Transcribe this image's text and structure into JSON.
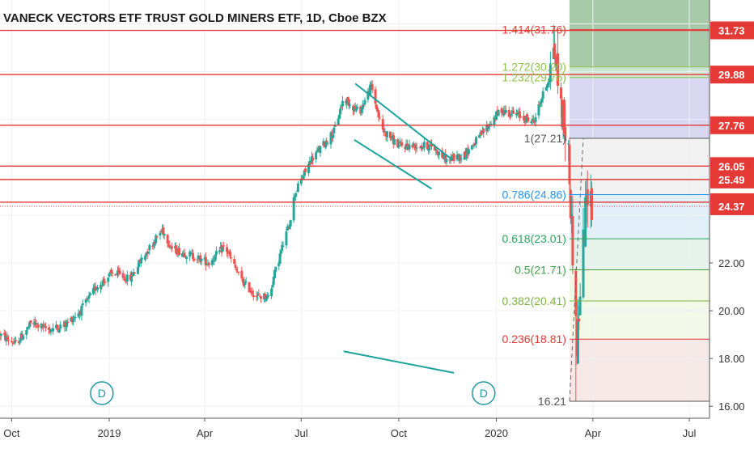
{
  "chart_data": {
    "type": "candlestick",
    "title": "VANECK VECTORS ETF TRUST GOLD MINERS ETF, 1D, Cboe BZX",
    "ylim": [
      15.5,
      33.0
    ],
    "yticks": [
      16,
      18,
      20,
      22,
      24,
      26,
      28,
      30,
      32
    ],
    "ytick_labels": [
      "16.00",
      "18.00",
      "20.00",
      "22.00",
      "",
      "",
      "",
      "",
      ""
    ],
    "xlim": [
      "2018-09-20",
      "2020-07-20"
    ],
    "xticks": [
      {
        "date": "2018-10-01",
        "label": "Oct"
      },
      {
        "date": "2019-01-01",
        "label": "2019"
      },
      {
        "date": "2019-04-01",
        "label": "Apr"
      },
      {
        "date": "2019-07-01",
        "label": "Jul"
      },
      {
        "date": "2019-10-01",
        "label": "Oct"
      },
      {
        "date": "2020-01-01",
        "label": "2020"
      },
      {
        "date": "2020-04-01",
        "label": "Apr"
      },
      {
        "date": "2020-07-01",
        "label": "Jul"
      }
    ],
    "horizontal_levels": [
      {
        "price": 31.73,
        "label": "31.73"
      },
      {
        "price": 29.88,
        "label": "29.88"
      },
      {
        "price": 27.76,
        "label": "27.76"
      },
      {
        "price": 26.05,
        "label": "26.05"
      },
      {
        "price": 25.49,
        "label": "25.49"
      },
      {
        "price": 24.54,
        "label": "24.54"
      }
    ],
    "last_price": {
      "price": 24.37,
      "label": "24.37"
    },
    "fib_levels": [
      {
        "label": "1.414(31.76)",
        "value": 31.76,
        "color": "#e53935"
      },
      {
        "label": "1.272(30.20)",
        "value": 30.2,
        "color": "#8bc34a"
      },
      {
        "label": "1.232(29.76)",
        "value": 29.76,
        "color": "#8bc34a"
      },
      {
        "label": "1(27.21)",
        "value": 27.21,
        "color": "#555555"
      },
      {
        "label": "0.786(24.86)",
        "value": 24.86,
        "color": "#2196f3"
      },
      {
        "label": "0.618(23.01)",
        "value": 23.01,
        "color": "#26a65b"
      },
      {
        "label": "0.5(21.71)",
        "value": 21.71,
        "color": "#43a047"
      },
      {
        "label": "0.382(20.41)",
        "value": 20.41,
        "color": "#7cb342"
      },
      {
        "label": "0.236(18.81)",
        "value": 18.81,
        "color": "#e53935"
      },
      {
        "label": "16.21",
        "value": 16.21,
        "color": "#555555"
      }
    ],
    "fib_zone_colors": [
      "#5e9e62",
      "#b6b6e6",
      "#e6e6e6",
      "#c8e3f2",
      "#cfead9",
      "#e3f2cf",
      "#f1d6d6"
    ],
    "trendlines": [
      {
        "from": [
          "2019-08-21",
          29.5
        ],
        "to": [
          "2019-11-21",
          26.3
        ]
      },
      {
        "from": [
          "2019-08-20",
          27.15
        ],
        "to": [
          "2019-11-01",
          25.1
        ]
      },
      {
        "from": [
          "2019-08-10",
          18.3
        ],
        "to": [
          "2019-11-22",
          17.4
        ]
      }
    ],
    "fib_anchor_line": {
      "from": [
        "2020-03-10",
        16.21
      ],
      "to": [
        "2020-03-23",
        27.21
      ]
    },
    "dividend_markers": [
      {
        "date": "2018-12-25",
        "label": "D"
      },
      {
        "date": "2019-12-20",
        "label": "D"
      }
    ],
    "colors": {
      "up": "#26a69a",
      "down": "#ef5350",
      "level": "#e53935"
    },
    "anchors": [
      [
        "2018-09-20",
        19.0
      ],
      [
        "2018-10-05",
        18.6
      ],
      [
        "2018-10-20",
        19.5
      ],
      [
        "2018-11-05",
        19.2
      ],
      [
        "2018-11-20",
        19.4
      ],
      [
        "2018-12-05",
        20.0
      ],
      [
        "2018-12-20",
        21.0
      ],
      [
        "2019-01-05",
        21.6
      ],
      [
        "2019-01-20",
        21.3
      ],
      [
        "2019-02-01",
        22.2
      ],
      [
        "2019-02-20",
        23.4
      ],
      [
        "2019-03-01",
        22.6
      ],
      [
        "2019-03-20",
        22.3
      ],
      [
        "2019-04-05",
        22.0
      ],
      [
        "2019-04-20",
        22.7
      ],
      [
        "2019-05-05",
        21.3
      ],
      [
        "2019-05-20",
        20.6
      ],
      [
        "2019-06-01",
        20.6
      ],
      [
        "2019-06-05",
        21.4
      ],
      [
        "2019-06-20",
        23.7
      ],
      [
        "2019-06-25",
        24.9
      ],
      [
        "2019-07-10",
        26.3
      ],
      [
        "2019-08-01",
        27.5
      ],
      [
        "2019-08-10",
        28.9
      ],
      [
        "2019-08-25",
        28.3
      ],
      [
        "2019-09-05",
        29.4
      ],
      [
        "2019-09-15",
        27.6
      ],
      [
        "2019-10-01",
        26.9
      ],
      [
        "2019-10-15",
        26.9
      ],
      [
        "2019-11-01",
        26.9
      ],
      [
        "2019-11-15",
        26.3
      ],
      [
        "2019-12-01",
        26.5
      ],
      [
        "2019-12-15",
        27.2
      ],
      [
        "2020-01-05",
        28.4
      ],
      [
        "2020-01-20",
        28.2
      ],
      [
        "2020-02-05",
        27.9
      ],
      [
        "2020-02-20",
        29.8
      ],
      [
        "2020-02-24",
        31.2
      ],
      [
        "2020-03-01",
        28.9
      ],
      [
        "2020-03-09",
        26.5
      ],
      [
        "2020-03-13",
        22.5
      ],
      [
        "2020-03-17",
        18.5
      ],
      [
        "2020-03-23",
        22.8
      ],
      [
        "2020-03-27",
        25.2
      ],
      [
        "2020-03-31",
        24.4
      ]
    ],
    "first_candle_date": "2018-09-20",
    "last_candle_date": "2020-03-31"
  }
}
